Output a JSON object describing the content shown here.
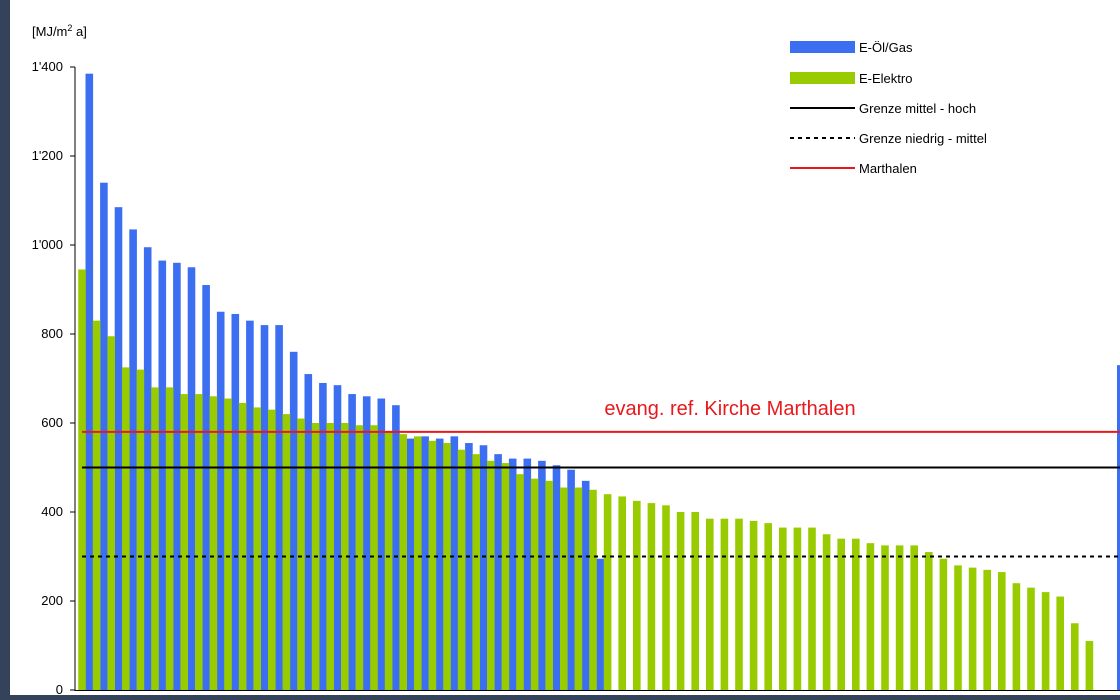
{
  "chart_data": {
    "type": "bar",
    "ylabel": "[MJ/m² a]",
    "ylim": [
      0,
      1400
    ],
    "yticks": [
      0,
      200,
      400,
      600,
      800,
      1000,
      1200,
      1400
    ],
    "ytick_labels": [
      "0",
      "200",
      "400",
      "600",
      "800",
      "1'000",
      "1'200",
      "1'400"
    ],
    "grid": false,
    "legend_position": "top-right",
    "series": [
      {
        "name": "E-Öl/Gas",
        "color": "#3b6ef0",
        "values": [
          1385,
          1140,
          1085,
          1035,
          995,
          965,
          960,
          950,
          910,
          850,
          845,
          830,
          820,
          820,
          760,
          710,
          690,
          685,
          665,
          660,
          655,
          640,
          565,
          570,
          565,
          570,
          555,
          550,
          530,
          520,
          520,
          515,
          505,
          495,
          470,
          295
        ]
      },
      {
        "name": "E-Elektro",
        "color": "#99cc00",
        "values": [
          945,
          830,
          795,
          725,
          720,
          680,
          680,
          665,
          665,
          660,
          655,
          645,
          635,
          630,
          620,
          610,
          600,
          600,
          600,
          595,
          595,
          580,
          575,
          570,
          560,
          555,
          540,
          530,
          515,
          510,
          485,
          475,
          470,
          455,
          455,
          450,
          440,
          435,
          425,
          420,
          415,
          400,
          400,
          385,
          385,
          385,
          380,
          375,
          365,
          365,
          365,
          350,
          340,
          340,
          330,
          325,
          325,
          325,
          310,
          295,
          280,
          275,
          270,
          265,
          240,
          230,
          220,
          210,
          150,
          110
        ]
      }
    ],
    "reference_lines": [
      {
        "name": "Grenze mittel - hoch",
        "value": 500,
        "color": "#000000",
        "style": "solid"
      },
      {
        "name": "Grenze niedrig - mittel",
        "value": 300,
        "color": "#000000",
        "style": "dashed"
      },
      {
        "name": "Marthalen",
        "value": 580,
        "color": "#e8191c",
        "style": "solid"
      }
    ],
    "edge_bar": {
      "value": 730,
      "color": "#3b6ef0"
    },
    "annotation": {
      "text": "evang. ref. Kirche Marthalen",
      "color": "#e8191c"
    }
  }
}
